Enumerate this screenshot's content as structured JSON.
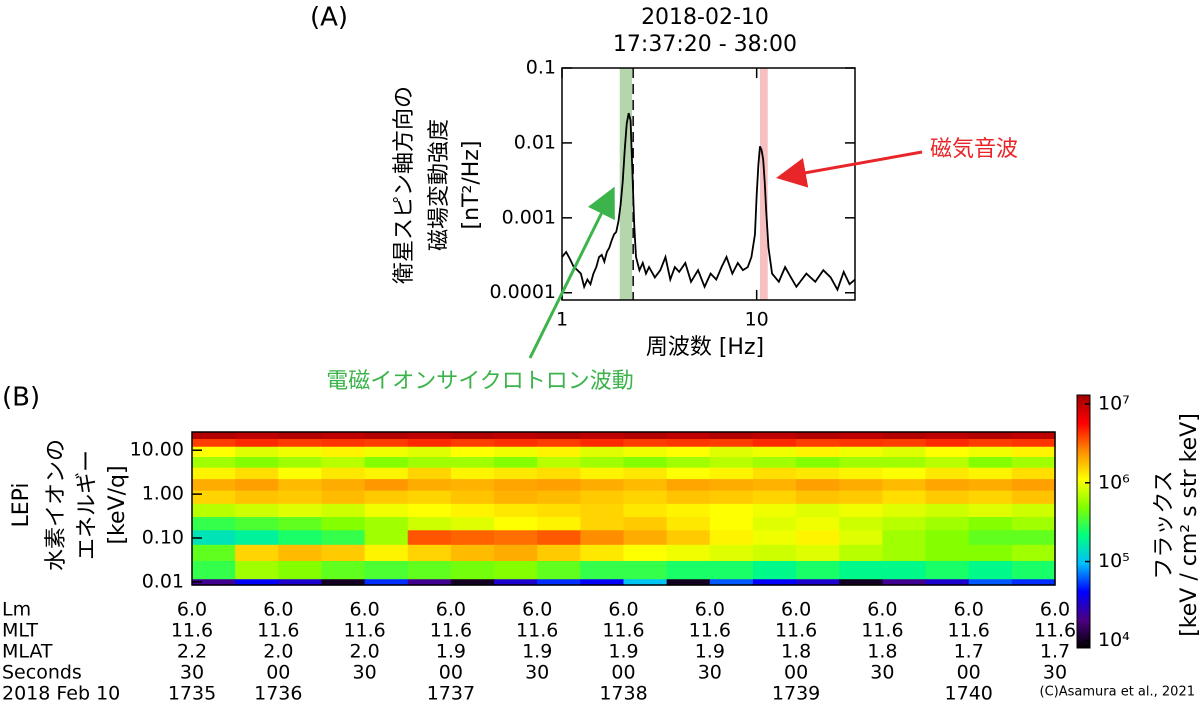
{
  "panel_labels": [
    "(A)",
    "(B)"
  ],
  "credit": "(C)Asamura et al., 2021",
  "chart_data": [
    {
      "type": "line",
      "title": "2018-02-10",
      "subtitle": "17:37:20 - 38:00",
      "xlabel": "周波数 [Hz]",
      "ylabel": [
        "衛星スピン軸方向の",
        "磁場変動強度",
        "[nT²/Hz]"
      ],
      "log_x": true,
      "log_y": true,
      "xlim": [
        1,
        32
      ],
      "ylim": [
        8e-05,
        0.1
      ],
      "xticks": [
        1,
        10
      ],
      "yticks": [
        0.1,
        0.01,
        0.001,
        0.0001
      ],
      "x": [
        1,
        1.05,
        1.1,
        1.15,
        1.2,
        1.25,
        1.3,
        1.35,
        1.4,
        1.45,
        1.5,
        1.55,
        1.6,
        1.65,
        1.7,
        1.75,
        1.8,
        1.85,
        1.9,
        1.95,
        2.0,
        2.05,
        2.1,
        2.15,
        2.2,
        2.25,
        2.3,
        2.35,
        2.4,
        2.5,
        2.6,
        2.7,
        2.8,
        3.0,
        3.2,
        3.4,
        3.6,
        3.8,
        4.0,
        4.3,
        4.6,
        5.0,
        5.4,
        5.8,
        6.2,
        6.6,
        7.0,
        7.5,
        8.0,
        8.5,
        9.0,
        9.4,
        9.8,
        10.0,
        10.2,
        10.4,
        10.6,
        10.8,
        11.0,
        11.2,
        11.5,
        12,
        13,
        14,
        15,
        16,
        18,
        20,
        22,
        24,
        26,
        28,
        30,
        32
      ],
      "series": [
        {
          "color": "#000000",
          "values": [
            0.0003,
            0.00035,
            0.00028,
            0.00022,
            0.0002,
            0.00018,
            0.00012,
            0.00015,
            0.00013,
            0.00018,
            0.00022,
            0.0003,
            0.00032,
            0.00026,
            0.00035,
            0.0004,
            0.0005,
            0.0006,
            0.00065,
            0.0009,
            0.0015,
            0.003,
            0.008,
            0.018,
            0.025,
            0.02,
            0.004,
            0.0008,
            0.0003,
            0.0002,
            0.00025,
            0.00018,
            0.00022,
            0.00016,
            0.0002,
            0.0003,
            0.00015,
            0.00022,
            0.00019,
            0.00025,
            0.00014,
            0.0002,
            0.00012,
            0.00018,
            0.00015,
            0.00022,
            0.0003,
            0.00018,
            0.00025,
            0.0002,
            0.00022,
            0.0003,
            0.0006,
            0.002,
            0.005,
            0.009,
            0.008,
            0.006,
            0.003,
            0.0012,
            0.0004,
            0.00018,
            0.00014,
            0.00022,
            0.00016,
            0.00012,
            0.00018,
            0.00014,
            0.0002,
            0.00016,
            0.00011,
            0.00019,
            0.00013,
            0.00015
          ]
        }
      ],
      "bands": [
        {
          "xlim": [
            1.98,
            2.29
          ],
          "color": "#b5d6ac"
        },
        {
          "xlim": [
            10.4,
            11.4
          ],
          "color": "#f6c0c0"
        }
      ],
      "vlines": [
        {
          "x": 2.32,
          "dashed": true
        }
      ],
      "annotations": [
        {
          "text": "磁気音波",
          "color": "#e8262a"
        },
        {
          "text": "電磁イオンサイクロトロン波動",
          "color": "#3cb44b"
        }
      ]
    },
    {
      "type": "heatmap",
      "ylabel": [
        "LEPi",
        "水素イオンの",
        "エネルギー",
        "[keV/q]"
      ],
      "log_y": true,
      "ylim": [
        0.0085,
        26
      ],
      "yticks": [
        {
          "value": 10,
          "label": "10.00"
        },
        {
          "value": 1,
          "label": "1.00"
        },
        {
          "value": 0.1,
          "label": "0.10"
        },
        {
          "value": 0.01,
          "label": "0.01"
        }
      ],
      "y_edges": [
        26,
        18,
        12,
        7,
        4,
        2.2,
        1.2,
        0.6,
        0.3,
        0.15,
        0.07,
        0.03,
        0.0115,
        0.0085
      ],
      "values": [
        [
          11000000.0,
          10000000.0,
          11000000.0,
          10000000.0,
          11000000.0,
          10000000.0,
          11000000.0,
          10000000.0,
          11000000.0,
          10000000.0,
          11000000.0,
          10000000.0,
          11000000.0,
          10000000.0,
          11000000.0,
          10000000.0,
          11000000.0,
          10000000.0,
          11000000.0,
          10000000.0
        ],
        [
          4000000.0,
          4500000.0,
          4000000.0,
          4200000.0,
          4000000.0,
          4500000.0,
          4000000.0,
          4300000.0,
          4000000.0,
          4500000.0,
          4000000.0,
          4200000.0,
          4000000.0,
          4500000.0,
          4000000.0,
          4200000.0,
          4000000.0,
          4500000.0,
          4000000.0,
          4200000.0
        ],
        [
          1100000.0,
          900000.0,
          1000000.0,
          1200000.0,
          1000000.0,
          900000.0,
          1100000.0,
          1000000.0,
          1200000.0,
          900000.0,
          1000000.0,
          1100000.0,
          900000.0,
          1000000.0,
          1200000.0,
          1000000.0,
          900000.0,
          1100000.0,
          1000000.0,
          1200000.0
        ],
        [
          600000.0,
          500000.0,
          600000.0,
          700000.0,
          500000.0,
          600000.0,
          600000.0,
          500000.0,
          700000.0,
          600000.0,
          500000.0,
          600000.0,
          700000.0,
          600000.0,
          500000.0,
          600000.0,
          600000.0,
          700000.0,
          500000.0,
          600000.0
        ],
        [
          1200000.0,
          1400000.0,
          1100000.0,
          1300000.0,
          1200000.0,
          1500000.0,
          1200000.0,
          1300000.0,
          1400000.0,
          1200000.0,
          1300000.0,
          1100000.0,
          1200000.0,
          1400000.0,
          1300000.0,
          1200000.0,
          1100000.0,
          1300000.0,
          1200000.0,
          1400000.0
        ],
        [
          2000000.0,
          2200000.0,
          1800000.0,
          2000000.0,
          2300000.0,
          2000000.0,
          1900000.0,
          2100000.0,
          2200000.0,
          2000000.0,
          1800000.0,
          2100000.0,
          2000000.0,
          1900000.0,
          2200000.0,
          2000000.0,
          1800000.0,
          2100000.0,
          2000000.0,
          2200000.0
        ],
        [
          1500000.0,
          1700000.0,
          1600000.0,
          1800000.0,
          1600000.0,
          1500000.0,
          1700000.0,
          1900000.0,
          1800000.0,
          1600000.0,
          1500000.0,
          1700000.0,
          1600000.0,
          1500000.0,
          1700000.0,
          1600000.0,
          1400000.0,
          1600000.0,
          1500000.0,
          1700000.0
        ],
        [
          700000.0,
          800000.0,
          900000.0,
          800000.0,
          1000000.0,
          1100000.0,
          1200000.0,
          1300000.0,
          1400000.0,
          1500000.0,
          1300000.0,
          1200000.0,
          1100000.0,
          1000000.0,
          900000.0,
          1000000.0,
          900000.0,
          800000.0,
          900000.0,
          800000.0
        ],
        [
          300000.0,
          350000.0,
          400000.0,
          500000.0,
          600000.0,
          800000.0,
          900000.0,
          1100000.0,
          1200000.0,
          1500000.0,
          1600000.0,
          1300000.0,
          1100000.0,
          900000.0,
          1000000.0,
          800000.0,
          700000.0,
          600000.0,
          500000.0,
          600000.0
        ],
        [
          150000.0,
          180000.0,
          250000.0,
          300000.0,
          600000.0,
          3500000.0,
          3200000.0,
          3000000.0,
          3400000.0,
          2500000.0,
          2000000.0,
          1600000.0,
          1200000.0,
          1000000.0,
          1200000.0,
          900000.0,
          600000.0,
          500000.0,
          400000.0,
          400000.0
        ],
        [
          400000.0,
          1500000.0,
          1800000.0,
          1600000.0,
          1200000.0,
          1500000.0,
          1800000.0,
          2000000.0,
          1600000.0,
          1300000.0,
          1100000.0,
          1000000.0,
          900000.0,
          800000.0,
          900000.0,
          700000.0,
          600000.0,
          500000.0,
          500000.0,
          600000.0
        ],
        [
          300000.0,
          600000.0,
          500000.0,
          400000.0,
          350000.0,
          400000.0,
          450000.0,
          500000.0,
          400000.0,
          300000.0,
          300000.0,
          250000.0,
          250000.0,
          200000.0,
          250000.0,
          200000.0,
          200000.0,
          250000.0,
          200000.0,
          250000.0
        ],
        [
          20000.0,
          40000.0,
          30000.0,
          10000.0,
          50000.0,
          20000.0,
          10000.0,
          30000.0,
          50000.0,
          40000.0,
          100000.0,
          10000.0,
          60000.0,
          40000.0,
          30000.0,
          10000.0,
          20000.0,
          30000.0,
          60000.0,
          50000.0
        ]
      ],
      "clim": [
        8000,
        13000000.0
      ],
      "cticks": [
        {
          "value": 10000000,
          "label": "10⁷"
        },
        {
          "value": 1000000,
          "label": "10⁶"
        },
        {
          "value": 100000,
          "label": "10⁵"
        },
        {
          "value": 10000,
          "label": "10⁴"
        }
      ],
      "clabel": [
        "フラックス",
        "[keV / cm² s str keV]"
      ],
      "colorscale": [
        "#000000",
        "#4b0082",
        "#0000ff",
        "#00bfff",
        "#00ff7f",
        "#7fff00",
        "#ffff00",
        "#ff8c00",
        "#ff0000",
        "#a00000"
      ]
    }
  ],
  "ephemeris": {
    "rows": [
      {
        "label": "Lm",
        "values": [
          "6.0",
          "6.0",
          "6.0",
          "6.0",
          "6.0",
          "6.0",
          "6.0",
          "6.0",
          "6.0",
          "6.0",
          "6.0"
        ]
      },
      {
        "label": "MLT",
        "values": [
          "11.6",
          "11.6",
          "11.6",
          "11.6",
          "11.6",
          "11.6",
          "11.6",
          "11.6",
          "11.6",
          "11.6",
          "11.6"
        ]
      },
      {
        "label": "MLAT",
        "values": [
          "2.2",
          "2.0",
          "2.0",
          "1.9",
          "1.9",
          "1.9",
          "1.9",
          "1.8",
          "1.8",
          "1.7",
          "1.7"
        ]
      },
      {
        "label": "Seconds",
        "values": [
          "30",
          "00",
          "30",
          "00",
          "30",
          "00",
          "30",
          "00",
          "30",
          "00",
          "30"
        ]
      },
      {
        "label": "2018 Feb 10",
        "values": [
          "1735",
          "1736",
          null,
          "1737",
          null,
          "1738",
          null,
          "1739",
          null,
          "1740",
          null
        ]
      }
    ]
  }
}
